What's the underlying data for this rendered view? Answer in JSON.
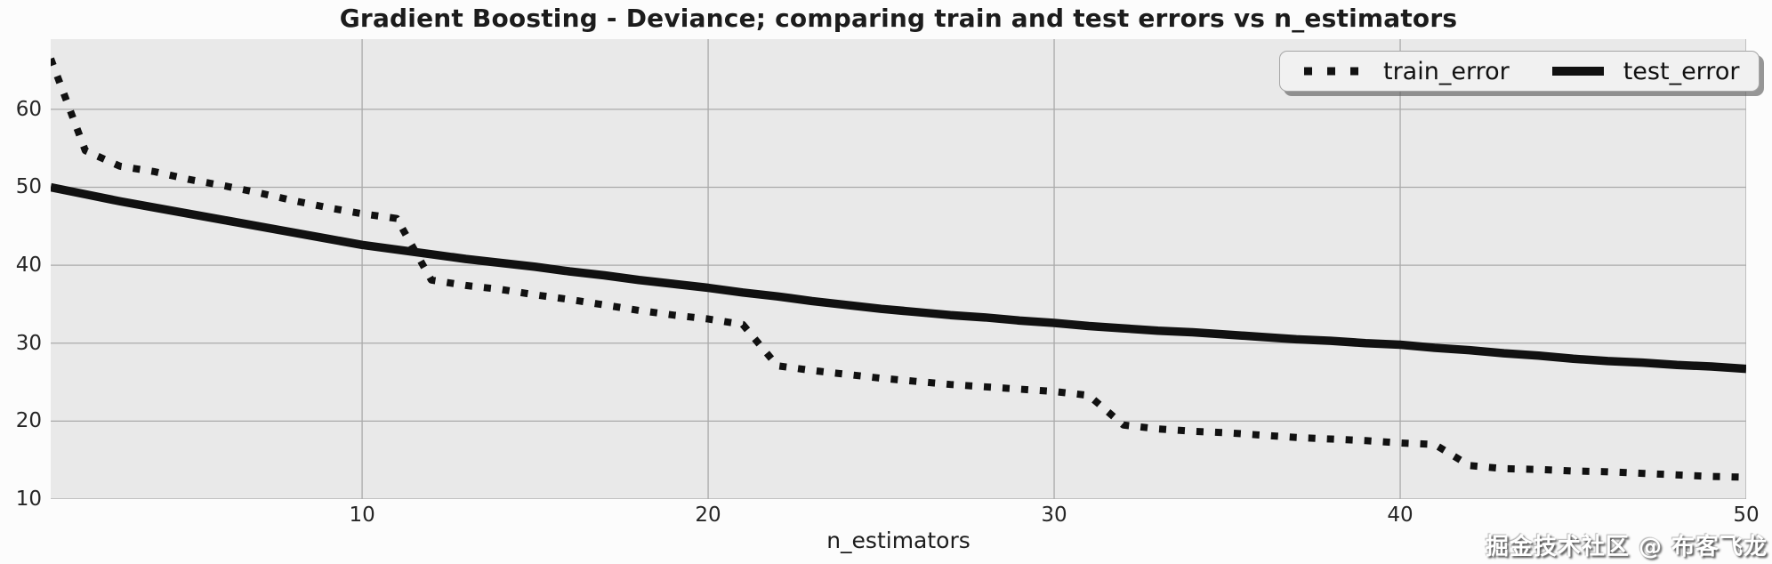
{
  "figure": {
    "title": "Gradient Boosting - Deviance; comparing train and test errors vs n_estimators",
    "xlabel": "n_estimators",
    "watermark": "掘金技术社区 @ 布客飞龙"
  },
  "legend": {
    "position": "upper right",
    "items": [
      {
        "label": "train_error",
        "line_style": "dotted"
      },
      {
        "label": "test_error",
        "line_style": "solid"
      }
    ]
  },
  "colors": {
    "figure_bg": "#fcfcfc",
    "axes_bg": "#e9e9e9",
    "grid": "#aaaaaa",
    "line": "#111111",
    "text": "#1c1c1c",
    "tick_label": "#262626",
    "legend_bg": "#f1f1f1",
    "legend_border": "#a6a6a6",
    "legend_shadow": "rgba(95,95,95,0.65)"
  },
  "chart_data": {
    "type": "line",
    "title": "Gradient Boosting - Deviance; comparing train and test errors vs n_estimators",
    "xlabel": "n_estimators",
    "ylabel": "",
    "xlim": [
      1,
      50
    ],
    "ylim": [
      10,
      69
    ],
    "xticks": [
      10,
      20,
      30,
      40,
      50
    ],
    "yticks": [
      10,
      20,
      30,
      40,
      50,
      60
    ],
    "grid": true,
    "legend_position": "upper right",
    "x": [
      1,
      2,
      3,
      4,
      5,
      6,
      7,
      8,
      9,
      10,
      11,
      12,
      13,
      14,
      15,
      16,
      17,
      18,
      19,
      20,
      21,
      22,
      23,
      24,
      25,
      26,
      27,
      28,
      29,
      30,
      31,
      32,
      33,
      34,
      35,
      36,
      37,
      38,
      39,
      40,
      41,
      42,
      43,
      44,
      45,
      46,
      47,
      48,
      49,
      50
    ],
    "series": [
      {
        "name": "train_error",
        "style": "dotted",
        "values": [
          66.5,
          54.7,
          52.7,
          52.0,
          51.0,
          50.2,
          49.3,
          48.3,
          47.4,
          46.6,
          46.0,
          38.1,
          37.4,
          36.9,
          36.2,
          35.6,
          34.9,
          34.2,
          33.6,
          33.1,
          32.4,
          27.1,
          26.5,
          26.0,
          25.5,
          25.1,
          24.7,
          24.4,
          24.1,
          23.8,
          23.3,
          19.5,
          19.0,
          18.7,
          18.5,
          18.2,
          17.9,
          17.7,
          17.5,
          17.2,
          17.0,
          14.3,
          13.9,
          13.8,
          13.6,
          13.5,
          13.3,
          13.1,
          12.9,
          12.8
        ]
      },
      {
        "name": "test_error",
        "style": "solid",
        "values": [
          50.0,
          49.1,
          48.2,
          47.4,
          46.6,
          45.8,
          45.0,
          44.2,
          43.4,
          42.6,
          42.0,
          41.4,
          40.8,
          40.3,
          39.8,
          39.2,
          38.7,
          38.1,
          37.6,
          37.1,
          36.5,
          36.0,
          35.4,
          34.9,
          34.4,
          34.0,
          33.6,
          33.3,
          32.9,
          32.6,
          32.2,
          31.9,
          31.6,
          31.4,
          31.1,
          30.8,
          30.5,
          30.3,
          30.0,
          29.8,
          29.4,
          29.1,
          28.7,
          28.4,
          28.0,
          27.7,
          27.5,
          27.2,
          27.0,
          26.7
        ]
      }
    ]
  }
}
